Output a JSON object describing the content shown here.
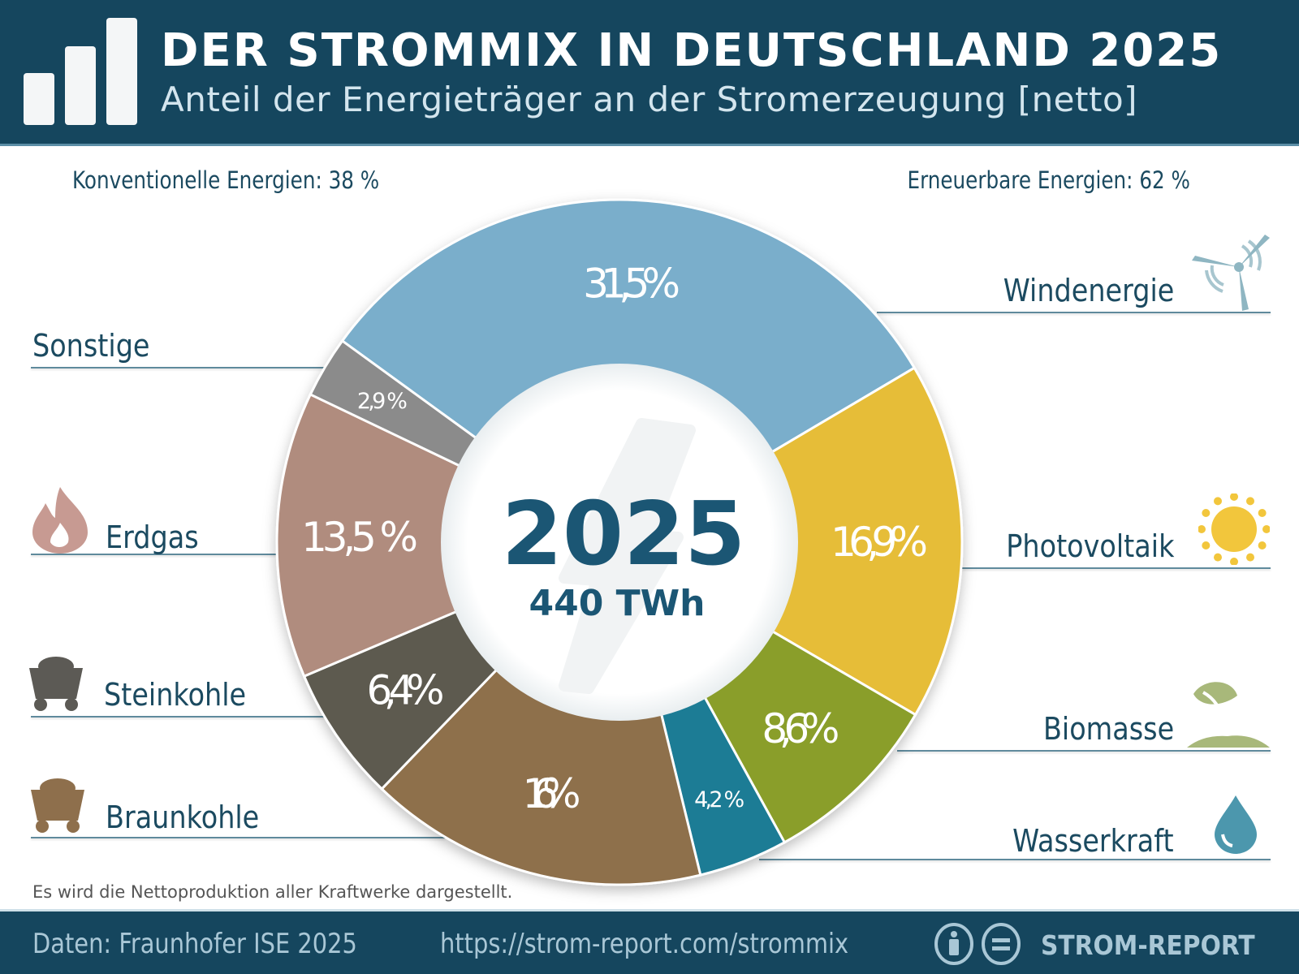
{
  "header": {
    "title": "DER STROMMIX IN DEUTSCHLAND 2025",
    "subtitle": "Anteil der Energieträger an der Stromerzeugung [netto]",
    "logo_icon": "bar-chart-icon"
  },
  "groups": {
    "conventional": "Konventionelle Energien: 38 %",
    "renewable": "Erneuerbare Energien: 62 %"
  },
  "center": {
    "year": "2025",
    "total": "440 TWh",
    "background_icon": "lightning-bolt-icon"
  },
  "chart_data": {
    "type": "pie",
    "donut": true,
    "unit": "%",
    "order": "clockwise",
    "categories": [
      "Windenergie",
      "Photovoltaik",
      "Biomasse",
      "Wasserkraft",
      "Braunkohle",
      "Steinkohle",
      "Erdgas",
      "Sonstige"
    ],
    "values": [
      31.5,
      16.9,
      8.6,
      4.2,
      16,
      6.4,
      13.5,
      2.9
    ],
    "data_labels": [
      "31,5%",
      "16,9%",
      "8,6%",
      "4,2 %",
      "16%",
      "6,4%",
      "13,5 %",
      "2,9 %"
    ],
    "colors": [
      "#7aaecb",
      "#e6bd37",
      "#8a9e2c",
      "#1f7b95",
      "#8e6f4c",
      "#5d5a50",
      "#b08c7e",
      "#8b8b8b"
    ],
    "icons": [
      "wind-turbine-icon",
      "sun-icon",
      "plant-icon",
      "water-drop-icon",
      "mine-cart-icon",
      "mine-cart-icon",
      "flame-icon",
      ""
    ]
  },
  "note": "Es wird die Nettoproduktion aller Kraftwerke dargestellt.",
  "footer": {
    "source": "Daten: Fraunhofer ISE 2025",
    "url": "https://strom-report.com/strommix",
    "license_icons": [
      "cc-by-icon",
      "cc-nd-icon"
    ],
    "brand": "STROM-REPORT"
  }
}
